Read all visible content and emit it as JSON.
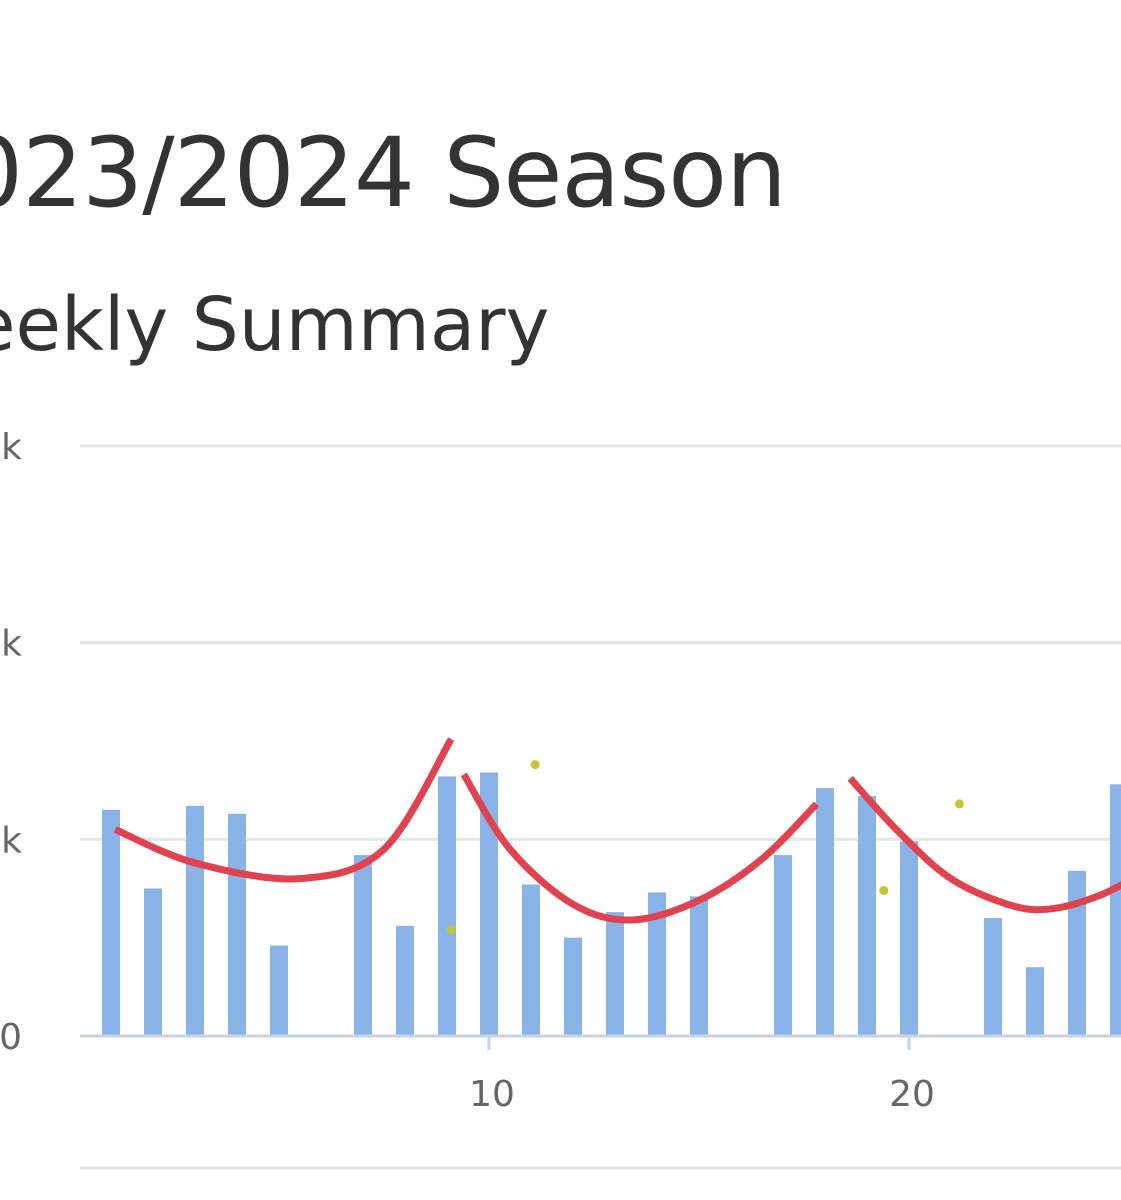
{
  "header": {
    "title": "023/2024 Season",
    "subtitle": "eekly Summary"
  },
  "colors": {
    "bar": "#8ab4e8",
    "trend": "#e0434f",
    "dots": "#c4c43a",
    "grid": "#e6e6e6",
    "axis": "#c8d4e6"
  },
  "chart_data": {
    "type": "bar",
    "ylim": [
      0,
      30000
    ],
    "xlim": [
      0.3,
      28.5
    ],
    "y_ticks": [
      {
        "value": 0,
        "label": "0"
      },
      {
        "value": 10000,
        "label": "k"
      },
      {
        "value": 20000,
        "label": "k"
      },
      {
        "value": 30000,
        "label": "k"
      }
    ],
    "x_ticks": [
      {
        "value": 10,
        "label": "10"
      },
      {
        "value": 20,
        "label": "20"
      }
    ],
    "series": [
      {
        "type": "bar",
        "x": [
          1,
          2,
          3,
          4,
          5,
          7,
          8,
          9,
          10,
          11,
          12,
          13,
          14,
          15,
          17,
          18,
          19,
          20,
          22,
          23,
          24,
          25
        ],
        "values": [
          11500,
          7500,
          11700,
          11300,
          4600,
          9200,
          5600,
          13200,
          13400,
          7700,
          5000,
          6300,
          7300,
          7100,
          9200,
          12600,
          12200,
          9900,
          6000,
          3500,
          8400,
          12800
        ]
      },
      {
        "type": "scatter",
        "x": [
          9.1,
          11.1,
          19.4,
          21.2
        ],
        "values": [
          5400,
          13800,
          7400,
          11800
        ]
      },
      {
        "type": "line",
        "segments": [
          {
            "x": [
              1.1,
              3.0,
              5.5,
              7.5,
              9.1
            ],
            "values": [
              10500,
              8800,
              8000,
              9500,
              15100
            ]
          },
          {
            "x": [
              9.4,
              10.5,
              12.0,
              13.4,
              15.0,
              16.5,
              17.8
            ],
            "values": [
              13300,
              9500,
              6700,
              5900,
              6900,
              9000,
              11800
            ]
          },
          {
            "x": [
              18.6,
              19.7,
              21.0,
              22.5,
              23.5,
              24.6,
              25.5
            ],
            "values": [
              13100,
              10500,
              8000,
              6600,
              6500,
              7200,
              8200
            ]
          }
        ]
      }
    ]
  }
}
